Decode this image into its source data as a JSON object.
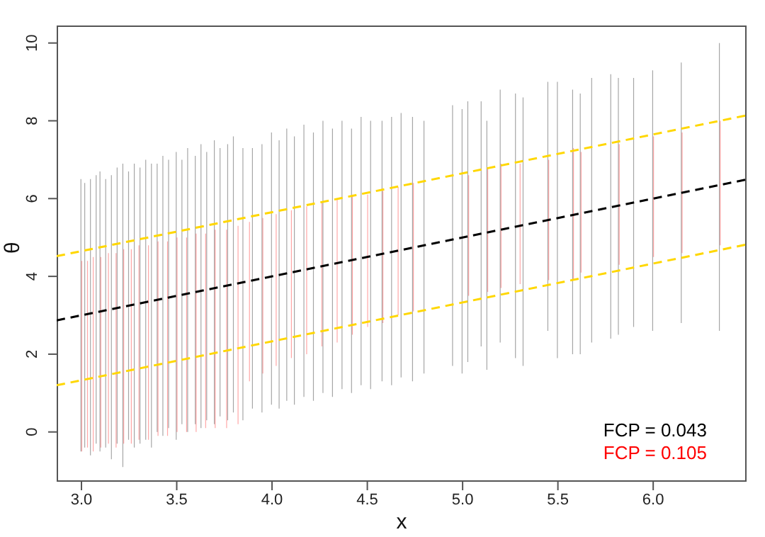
{
  "chart_data": {
    "type": "bar",
    "xlabel": "x",
    "ylabel": "θ",
    "xlim": [
      2.87,
      6.49
    ],
    "ylim": [
      -1.28,
      10.45
    ],
    "xticks": [
      {
        "value": 3,
        "label": "3.0"
      },
      3.5,
      {
        "value": 4,
        "label": "4.0"
      },
      4.5,
      {
        "value": 5,
        "label": "5.0"
      },
      5.5,
      {
        "value": 6,
        "label": "6.0"
      }
    ],
    "yticks": [
      0,
      2,
      4,
      6,
      8,
      10
    ],
    "legend": "bottom right",
    "grid": false,
    "series": [
      {
        "name": "FCP = 0.043",
        "color": "#000000",
        "x": [
          3.0,
          3.02,
          3.05,
          3.08,
          3.1,
          3.13,
          3.16,
          3.19,
          3.22,
          3.25,
          3.28,
          3.31,
          3.34,
          3.37,
          3.4,
          3.43,
          3.46,
          3.5,
          3.53,
          3.56,
          3.6,
          3.63,
          3.66,
          3.7,
          3.73,
          3.77,
          3.8,
          3.85,
          3.9,
          3.95,
          4.0,
          4.04,
          4.08,
          4.12,
          4.17,
          4.22,
          4.27,
          4.32,
          4.37,
          4.42,
          4.47,
          4.52,
          4.58,
          4.63,
          4.68,
          4.74,
          4.8,
          4.95,
          5.0,
          5.03,
          5.1,
          5.13,
          5.2,
          5.28,
          5.32,
          5.45,
          5.5,
          5.58,
          5.62,
          5.68,
          5.78,
          5.82,
          5.9,
          6.0,
          6.15,
          6.35
        ],
        "base": [
          -0.5,
          -0.4,
          -0.6,
          -0.3,
          -0.5,
          -0.4,
          -0.7,
          -0.3,
          -0.9,
          -0.2,
          -0.4,
          -0.3,
          -0.2,
          -0.4,
          0.0,
          -0.1,
          0.1,
          -0.2,
          0.2,
          0.0,
          0.2,
          0.1,
          0.3,
          0.2,
          0.4,
          0.3,
          0.5,
          0.3,
          0.6,
          0.5,
          0.7,
          0.6,
          0.8,
          0.7,
          0.9,
          0.8,
          1.0,
          0.9,
          1.1,
          1.0,
          1.2,
          1.1,
          1.3,
          1.2,
          1.4,
          1.3,
          1.5,
          1.7,
          1.5,
          1.8,
          2.2,
          1.6,
          2.3,
          1.9,
          1.7,
          2.6,
          1.9,
          2.0,
          2.0,
          2.3,
          2.4,
          2.5,
          2.7,
          2.6,
          2.8,
          2.6
        ],
        "values": [
          7.0,
          6.8,
          7.1,
          6.9,
          7.2,
          6.9,
          7.3,
          7.1,
          7.8,
          6.9,
          7.3,
          7.1,
          7.2,
          7.3,
          6.9,
          7.2,
          6.9,
          7.4,
          6.8,
          7.3,
          6.9,
          7.3,
          6.9,
          7.3,
          6.9,
          7.1,
          7.1,
          7.0,
          6.7,
          6.9,
          7.0,
          6.9,
          7.0,
          6.9,
          7.0,
          6.9,
          7.0,
          6.9,
          6.9,
          6.8,
          6.9,
          6.9,
          6.7,
          6.9,
          6.8,
          6.8,
          6.5,
          6.7,
          6.8,
          6.7,
          6.3,
          6.4,
          6.5,
          6.8,
          6.9,
          6.4,
          7.1,
          6.8,
          6.7,
          6.8,
          6.8,
          6.6,
          6.4,
          6.7,
          6.7,
          7.4
        ]
      },
      {
        "name": "FCP = 0.105",
        "color": "#ff0000",
        "x": [
          3.0,
          3.03,
          3.06,
          3.1,
          3.14,
          3.18,
          3.22,
          3.26,
          3.3,
          3.35,
          3.4,
          3.45,
          3.5,
          3.55,
          3.6,
          3.65,
          3.7,
          3.76,
          3.82,
          3.88,
          3.95,
          4.02,
          4.1,
          4.18,
          4.26,
          4.34,
          4.42,
          4.5,
          4.58,
          4.66,
          4.74,
          5.03,
          5.13,
          5.2,
          5.3,
          5.45,
          5.58,
          5.62,
          5.82,
          6.0,
          6.15,
          6.35
        ],
        "base": [
          -0.5,
          -0.4,
          -0.5,
          -0.4,
          -0.3,
          -0.4,
          -0.3,
          -0.3,
          -0.2,
          -0.2,
          -0.1,
          -0.1,
          0.0,
          0.0,
          0.0,
          0.1,
          0.1,
          0.1,
          0.2,
          1.3,
          1.5,
          1.7,
          1.9,
          2.0,
          2.2,
          2.3,
          2.5,
          2.7,
          2.8,
          3.0,
          3.1,
          3.5,
          3.6,
          3.7,
          3.8,
          3.9,
          3.9,
          4.1,
          4.3,
          4.5,
          4.6,
          4.8
        ],
        "values": [
          4.9,
          4.8,
          5.0,
          4.9,
          4.9,
          5.0,
          5.0,
          5.0,
          5.0,
          5.0,
          5.0,
          5.0,
          5.0,
          5.0,
          5.1,
          5.0,
          5.1,
          5.1,
          5.1,
          4.1,
          4.0,
          3.9,
          3.8,
          3.8,
          3.7,
          3.7,
          3.6,
          3.4,
          3.4,
          3.3,
          3.3,
          3.1,
          3.2,
          3.2,
          3.1,
          3.1,
          3.4,
          3.1,
          3.1,
          3.1,
          3.1,
          3.2
        ]
      },
      {
        "type": "line",
        "color": "#000000",
        "line_style": "dashed",
        "marker": "none",
        "x": [
          2.87,
          6.49
        ],
        "values": [
          2.87,
          6.49
        ]
      },
      {
        "type": "line",
        "color": "#ffd700",
        "line_style": "dashed",
        "marker": "none",
        "x": [
          2.87,
          6.49
        ],
        "values": [
          4.52,
          8.14
        ]
      },
      {
        "type": "line",
        "color": "#ffd700",
        "line_style": "dashed",
        "marker": "none",
        "x": [
          2.87,
          6.49
        ],
        "values": [
          1.2,
          4.82
        ]
      }
    ]
  }
}
